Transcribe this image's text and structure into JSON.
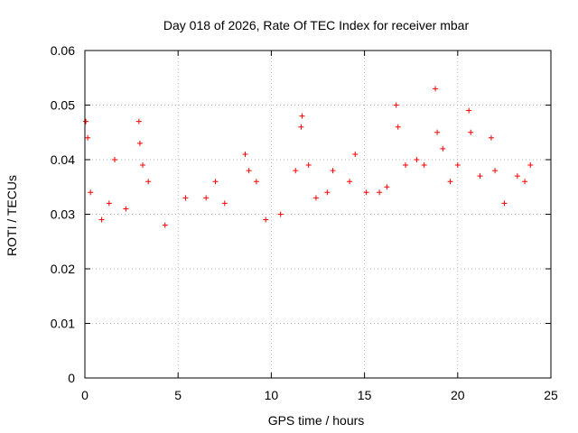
{
  "chart_data": {
    "type": "scatter",
    "title": "Day 018 of 2026, Rate Of TEC Index for receiver mbar",
    "xlabel": "GPS time / hours",
    "ylabel": "ROTI / TECUs",
    "xlim": [
      0,
      25
    ],
    "ylim": [
      0,
      0.06
    ],
    "x_ticks": [
      "0",
      "5",
      "10",
      "15",
      "20",
      "25"
    ],
    "y_ticks": [
      "0",
      "0.01",
      "0.02",
      "0.03",
      "0.04",
      "0.05",
      "0.06"
    ],
    "grid": true,
    "marker": "+",
    "marker_color": "#ff0000",
    "series": [
      {
        "points": [
          [
            0.05,
            0.047
          ],
          [
            0.15,
            0.044
          ],
          [
            0.3,
            0.034
          ],
          [
            0.9,
            0.029
          ],
          [
            1.3,
            0.032
          ],
          [
            1.6,
            0.04
          ],
          [
            2.2,
            0.031
          ],
          [
            2.9,
            0.047
          ],
          [
            2.95,
            0.043
          ],
          [
            3.1,
            0.039
          ],
          [
            3.4,
            0.036
          ],
          [
            4.3,
            0.028
          ],
          [
            5.4,
            0.033
          ],
          [
            6.5,
            0.033
          ],
          [
            7.0,
            0.036
          ],
          [
            7.5,
            0.032
          ],
          [
            8.6,
            0.041
          ],
          [
            8.8,
            0.038
          ],
          [
            9.2,
            0.036
          ],
          [
            9.7,
            0.029
          ],
          [
            10.5,
            0.03
          ],
          [
            11.3,
            0.038
          ],
          [
            11.6,
            0.046
          ],
          [
            11.65,
            0.048
          ],
          [
            12.0,
            0.039
          ],
          [
            12.4,
            0.033
          ],
          [
            13.0,
            0.034
          ],
          [
            13.3,
            0.038
          ],
          [
            14.2,
            0.036
          ],
          [
            14.5,
            0.041
          ],
          [
            15.1,
            0.034
          ],
          [
            15.8,
            0.034
          ],
          [
            16.2,
            0.035
          ],
          [
            16.7,
            0.05
          ],
          [
            16.8,
            0.046
          ],
          [
            17.2,
            0.039
          ],
          [
            17.8,
            0.04
          ],
          [
            18.2,
            0.039
          ],
          [
            18.8,
            0.053
          ],
          [
            18.9,
            0.045
          ],
          [
            19.2,
            0.042
          ],
          [
            19.6,
            0.036
          ],
          [
            20.0,
            0.039
          ],
          [
            20.6,
            0.049
          ],
          [
            20.7,
            0.045
          ],
          [
            21.2,
            0.037
          ],
          [
            21.8,
            0.044
          ],
          [
            22.0,
            0.038
          ],
          [
            22.5,
            0.032
          ],
          [
            23.2,
            0.037
          ],
          [
            23.6,
            0.036
          ],
          [
            23.9,
            0.039
          ]
        ]
      }
    ]
  }
}
